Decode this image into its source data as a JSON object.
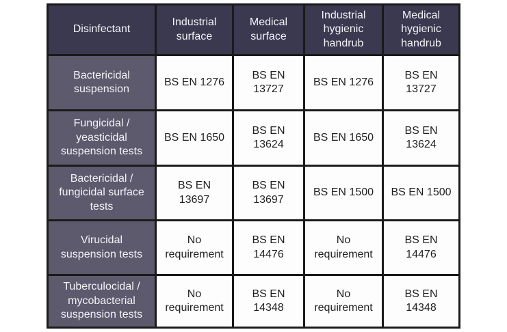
{
  "colors": {
    "header_bg": "#3a3950",
    "row_header_bg": "#5d5a6e",
    "cell_bg": "#fdfdfd",
    "border": "#1a1a1a",
    "header_text": "#f4f2f6",
    "cell_text": "#1f1f1f",
    "page_bg": "#ffffff"
  },
  "chart_data": {
    "type": "table",
    "title": "",
    "columns": [
      "Disinfectant",
      "Industrial surface",
      "Medical surface",
      "Industrial hygienic handrub",
      "Medical hygienic handrub"
    ],
    "rows": [
      [
        "Bactericidal suspension",
        "BS EN 1276",
        "BS EN 13727",
        "BS EN 1276",
        "BS EN 13727"
      ],
      [
        "Fungicidal / yeasticidal suspension tests",
        "BS EN 1650",
        "BS EN 13624",
        "BS EN 1650",
        "BS EN 13624"
      ],
      [
        "Bactericidal / fungicidal surface tests",
        "BS EN 13697",
        "BS EN 13697",
        "BS EN 1500",
        "BS EN 1500"
      ],
      [
        "Virucidal suspension tests",
        "No requirement",
        "BS EN 14476",
        "No requirement",
        "BS EN 14476"
      ],
      [
        "Tuberculocidal / mycobacterial suspension tests",
        "No requirement",
        "BS EN 14348",
        "No requirement",
        "BS EN 14348"
      ]
    ]
  },
  "table": {
    "columns": [
      "Disinfectant",
      "Industrial\nsurface",
      "Medical\nsurface",
      "Industrial\nhygienic\nhandrub",
      "Medical\nhygienic\nhandrub"
    ],
    "rows": [
      {
        "header": "Bactericidal\nsuspension",
        "cells": [
          "BS EN 1276",
          "BS EN\n13727",
          "BS EN 1276",
          "BS EN\n13727"
        ]
      },
      {
        "header": "Fungicidal /\nyeasticidal\nsuspension tests",
        "cells": [
          "BS EN 1650",
          "BS EN\n13624",
          "BS EN 1650",
          "BS EN\n13624"
        ]
      },
      {
        "header": "Bactericidal /\nfungicidal surface\ntests",
        "cells": [
          "BS EN\n13697",
          "BS EN\n13697",
          "BS EN 1500",
          "BS EN 1500"
        ]
      },
      {
        "header": "Virucidal\nsuspension tests",
        "cells": [
          "No\nrequirement",
          "BS EN\n14476",
          "No\nrequirement",
          "BS EN\n14476"
        ]
      },
      {
        "header": "Tuberculocidal /\nmycobacterial\nsuspension tests",
        "cells": [
          "No\nrequirement",
          "BS EN\n14348",
          "No\nrequirement",
          "BS EN\n14348"
        ]
      }
    ]
  }
}
